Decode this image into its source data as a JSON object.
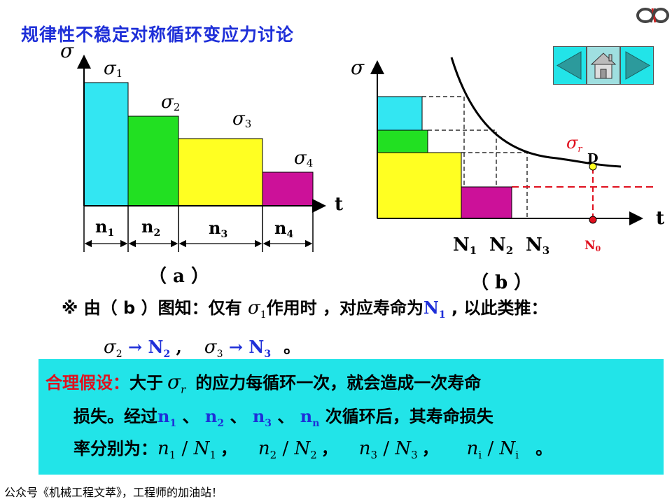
{
  "title": "规律性不稳定对称循环变应力讨论",
  "fig_a": {
    "y_label": "σ",
    "x_label": "t",
    "caption": "（ a ）",
    "steps": [
      {
        "label": "σ1",
        "sub": "1",
        "n": "n1",
        "n_sub": "1",
        "color": "#33e6f2"
      },
      {
        "label": "σ2",
        "sub": "2",
        "n": "n2",
        "n_sub": "2",
        "color": "#22e022"
      },
      {
        "label": "σ3",
        "sub": "3",
        "n": "n3",
        "n_sub": "3",
        "color": "#ffff22"
      },
      {
        "label": "σ4",
        "sub": "4",
        "n": "n4",
        "n_sub": "4",
        "color": "#cc1199"
      }
    ]
  },
  "fig_b": {
    "y_label": "σ",
    "x_label": "t",
    "caption": "（ b ）",
    "sigma_r": "σ",
    "sigma_r_sub": "r",
    "point_label": "D",
    "N_labels": [
      "N",
      "N",
      "N"
    ],
    "N_subs": [
      "1",
      "2",
      "3"
    ],
    "N0": "N",
    "N0_sub": "0"
  },
  "text": {
    "l1_a": "※ 由（ b ）图知：仅有 ",
    "l1_sigma": "σ",
    "l1_sigma_sub": "1",
    "l1_b": "作用时 ，对应寿命为",
    "l1_N": "N",
    "l1_N_sub": "1",
    "l1_c": " , 以此类推：",
    "l2_s2": "σ",
    "l2_s2_sub": "2",
    "l2_arrow1": " → N",
    "l2_N2_sub": "2",
    "l2_comma": " ,",
    "l2_s3": "σ",
    "l2_s3_sub": "3",
    "l2_arrow2": " → N",
    "l2_N3_sub": "3",
    "l2_end": "。"
  },
  "box": {
    "heading": "合理假设：",
    "r1_a": "大于",
    "r1_sigma": "σ",
    "r1_sigma_sub": "r",
    "r1_b": "的应力每循环一次，就会造成一次寿命",
    "r2_a": "损失。经过",
    "r2_n1": "n",
    "r2_n1_sub": "1",
    "r2_sep1": " 、 ",
    "r2_n2": "n",
    "r2_n2_sub": "2",
    "r2_sep2": " 、 ",
    "r2_n3": "n",
    "r2_n3_sub": "3",
    "r2_sep3": " 、 ",
    "r2_nn": "n",
    "r2_nn_sub": "n",
    "r2_b": " 次循环后，其寿命损失",
    "r3_a": "率分别为：",
    "f1_n": "n",
    "f1_n_sub": "1",
    "f1_N": "N",
    "f1_N_sub": "1",
    "f2_n": "n",
    "f2_n_sub": "2",
    "f2_N": "N",
    "f2_N_sub": "2",
    "f3_n": "n",
    "f3_n_sub": "3",
    "f3_N": "N",
    "f3_N_sub": "3",
    "fi_n": "n",
    "fi_n_sub": "i",
    "fi_N": "N",
    "fi_N_sub": "i",
    "slash": " / ",
    "comma": "，",
    "end": "。"
  },
  "footer": "公众号《机械工程文萃》，工程师的加油站！",
  "colors": {
    "title": "#1e2fd8",
    "box_bg": "#22e4e8",
    "heading_red": "#e0101e",
    "dash_red": "#e0101e"
  }
}
